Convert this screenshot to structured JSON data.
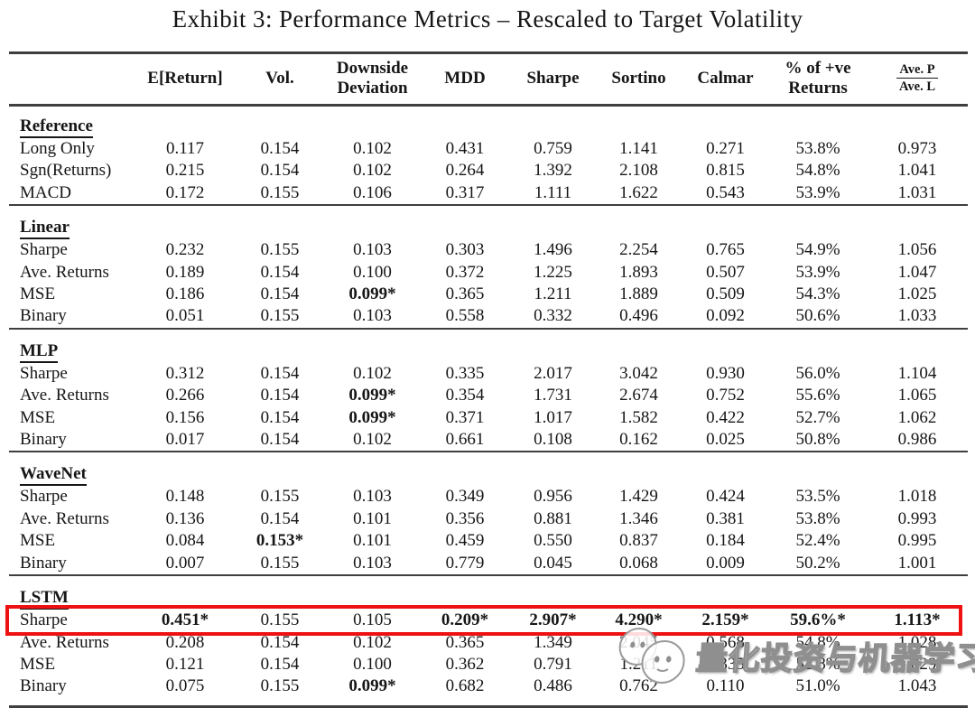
{
  "title": "Exhibit 3: Performance Metrics – Rescaled to Target Volatility",
  "highlight_color": "#ee1111",
  "watermark": {
    "text": "量化投资与机器学习",
    "logo": "two-overlapping-panda-faces"
  },
  "table": {
    "headers": [
      "E[Return]",
      "Vol.",
      "Downside Deviation",
      "MDD",
      "Sharpe",
      "Sortino",
      "Calmar",
      "% of +ve Returns"
    ],
    "avg_pl_header": {
      "top": "Ave. P",
      "bottom": "Ave. L"
    },
    "groups": [
      {
        "name": "Reference",
        "rows": [
          {
            "label": "Long Only",
            "values": [
              "0.117",
              "0.154",
              "0.102",
              "0.431",
              "0.759",
              "1.141",
              "0.271",
              "53.8%",
              "0.973"
            ],
            "bold": []
          },
          {
            "label": "Sgn(Returns)",
            "values": [
              "0.215",
              "0.154",
              "0.102",
              "0.264",
              "1.392",
              "2.108",
              "0.815",
              "54.8%",
              "1.041"
            ],
            "bold": []
          },
          {
            "label": "MACD",
            "values": [
              "0.172",
              "0.155",
              "0.106",
              "0.317",
              "1.111",
              "1.622",
              "0.543",
              "53.9%",
              "1.031"
            ],
            "bold": []
          }
        ]
      },
      {
        "name": "Linear",
        "rows": [
          {
            "label": "Sharpe",
            "values": [
              "0.232",
              "0.155",
              "0.103",
              "0.303",
              "1.496",
              "2.254",
              "0.765",
              "54.9%",
              "1.056"
            ],
            "bold": []
          },
          {
            "label": "Ave. Returns",
            "values": [
              "0.189",
              "0.154",
              "0.100",
              "0.372",
              "1.225",
              "1.893",
              "0.507",
              "53.9%",
              "1.047"
            ],
            "bold": []
          },
          {
            "label": "MSE",
            "values": [
              "0.186",
              "0.154",
              "0.099*",
              "0.365",
              "1.211",
              "1.889",
              "0.509",
              "54.3%",
              "1.025"
            ],
            "bold": [
              2
            ]
          },
          {
            "label": "Binary",
            "values": [
              "0.051",
              "0.155",
              "0.103",
              "0.558",
              "0.332",
              "0.496",
              "0.092",
              "50.6%",
              "1.033"
            ],
            "bold": []
          }
        ]
      },
      {
        "name": "MLP",
        "rows": [
          {
            "label": "Sharpe",
            "values": [
              "0.312",
              "0.154",
              "0.102",
              "0.335",
              "2.017",
              "3.042",
              "0.930",
              "56.0%",
              "1.104"
            ],
            "bold": []
          },
          {
            "label": "Ave. Returns",
            "values": [
              "0.266",
              "0.154",
              "0.099*",
              "0.354",
              "1.731",
              "2.674",
              "0.752",
              "55.6%",
              "1.065"
            ],
            "bold": [
              2
            ]
          },
          {
            "label": "MSE",
            "values": [
              "0.156",
              "0.154",
              "0.099*",
              "0.371",
              "1.017",
              "1.582",
              "0.422",
              "52.7%",
              "1.062"
            ],
            "bold": [
              2
            ]
          },
          {
            "label": "Binary",
            "values": [
              "0.017",
              "0.154",
              "0.102",
              "0.661",
              "0.108",
              "0.162",
              "0.025",
              "50.8%",
              "0.986"
            ],
            "bold": []
          }
        ]
      },
      {
        "name": "WaveNet",
        "rows": [
          {
            "label": "Sharpe",
            "values": [
              "0.148",
              "0.155",
              "0.103",
              "0.349",
              "0.956",
              "1.429",
              "0.424",
              "53.5%",
              "1.018"
            ],
            "bold": []
          },
          {
            "label": "Ave. Returns",
            "values": [
              "0.136",
              "0.154",
              "0.101",
              "0.356",
              "0.881",
              "1.346",
              "0.381",
              "53.8%",
              "0.993"
            ],
            "bold": []
          },
          {
            "label": "MSE",
            "values": [
              "0.084",
              "0.153*",
              "0.101",
              "0.459",
              "0.550",
              "0.837",
              "0.184",
              "52.4%",
              "0.995"
            ],
            "bold": [
              1
            ]
          },
          {
            "label": "Binary",
            "values": [
              "0.007",
              "0.155",
              "0.103",
              "0.779",
              "0.045",
              "0.068",
              "0.009",
              "50.2%",
              "1.001"
            ],
            "bold": []
          }
        ]
      },
      {
        "name": "LSTM",
        "rows": [
          {
            "label": "Sharpe",
            "values": [
              "0.451*",
              "0.155",
              "0.105",
              "0.209*",
              "2.907*",
              "4.290*",
              "2.159*",
              "59.6%*",
              "1.113*"
            ],
            "bold": [
              0,
              3,
              4,
              5,
              6,
              7,
              8
            ],
            "highlight": true
          },
          {
            "label": "Ave. Returns",
            "values": [
              "0.208",
              "0.154",
              "0.102",
              "0.365",
              "1.349",
              "2.045",
              "0.568",
              "54.8%",
              "1.028"
            ],
            "bold": []
          },
          {
            "label": "MSE",
            "values": [
              "0.121",
              "0.154",
              "0.100",
              "0.362",
              "0.791",
              "1.211",
              "0.335",
              "52.8%",
              "1.029"
            ],
            "bold": []
          },
          {
            "label": "Binary",
            "values": [
              "0.075",
              "0.155",
              "0.099*",
              "0.682",
              "0.486",
              "0.762",
              "0.110",
              "51.0%",
              "1.043"
            ],
            "bold": [
              2
            ]
          }
        ]
      }
    ]
  }
}
